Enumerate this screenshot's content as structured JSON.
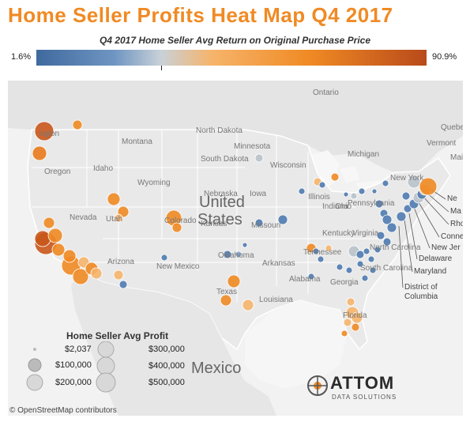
{
  "title": "Home Seller Profits Heat Map Q4 2017",
  "subtitle": "Q4 2017 Home Seller Avg Return on Original Purchase Price",
  "scale": {
    "min_label": "1.6%",
    "max_label": "90.9%",
    "min": 1.6,
    "max": 90.9
  },
  "legend": {
    "title": "Home Seller Avg Profit",
    "items": [
      "$2,037",
      "$100,000",
      "$200,000",
      "$300,000",
      "$400,000",
      "$500,000"
    ]
  },
  "attribution": "© OpenStreetMap contributors",
  "logo": {
    "name": "ATTOM",
    "tagline": "DATA SOLUTIONS"
  },
  "map_labels": {
    "country": "United States",
    "neighbor_country": "Mexico",
    "province": "Ontario",
    "states": [
      "ngton",
      "Oregon",
      "Idaho",
      "Montana",
      "North Dakota",
      "South Dakota",
      "Minnesota",
      "Wisconsin",
      "Michigan",
      "Wyoming",
      "Nevada",
      "Utah",
      "Colorado",
      "Iowa",
      "Nebraska",
      "Missouri",
      "Illinois",
      "Indiana",
      "Ohio",
      "Pennsylvania",
      "New York",
      "Kentucky",
      "Virginia",
      "Tennessee",
      "North Carolina",
      "South Carolina",
      "Oklahoma",
      "Arkansas",
      "Alabama",
      "Georgia",
      "Arizona",
      "New Mexico",
      "Texas",
      "Louisiana",
      "Florida",
      "Kansas",
      "Maine",
      "Quebec",
      "Vermont"
    ],
    "callouts": [
      "Ne",
      "Ma",
      "Rho",
      "Conne",
      "New Jer",
      "Delaware",
      "Maryland",
      "District of Columbia"
    ]
  },
  "colors": {
    "title": "#f08a24",
    "low": "#3f6a9e",
    "mid": "#c9d1d8",
    "high_mid": "#f08a24",
    "high": "#b84a1a",
    "land": "#e8e8e8",
    "water": "#f5f5f5"
  }
}
